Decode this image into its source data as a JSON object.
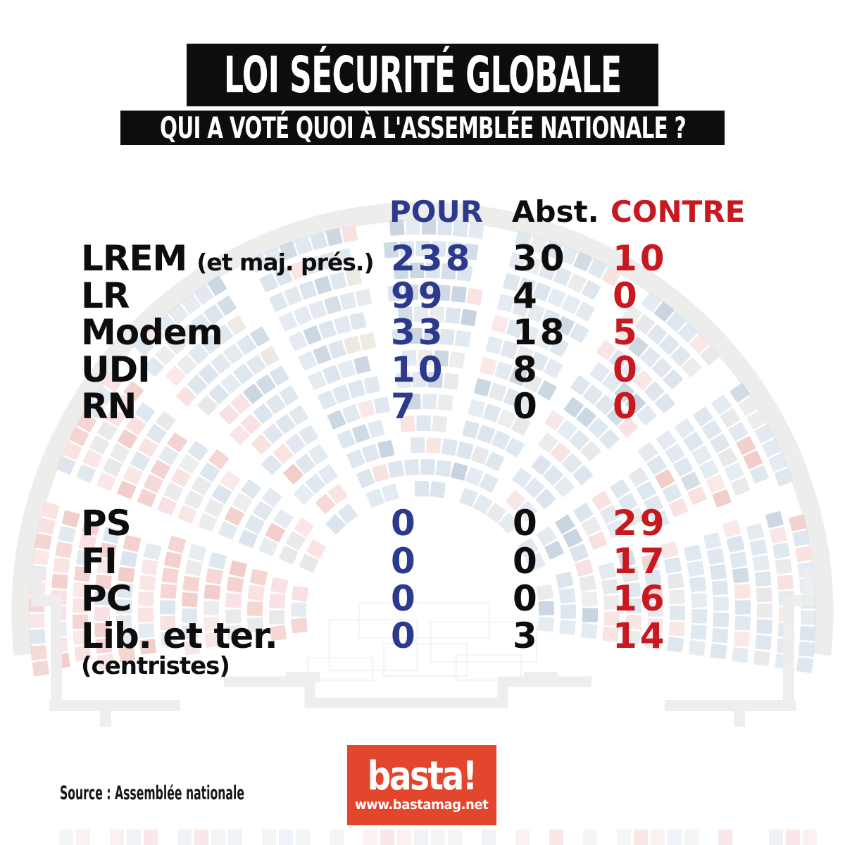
{
  "title": "LOI SÉCURITÉ GLOBALE",
  "subtitle": "QUI A VOTÉ QUOI À L'ASSEMBLÉE NATIONALE ?",
  "columns": {
    "pour": "POUR",
    "abst": "Abst.",
    "contre": "CONTRE"
  },
  "colors": {
    "pour_blue": "#2b3a8c",
    "contre_red": "#c7191f",
    "text_black": "#0d0d0d",
    "title_bg": "#0d0d0d",
    "title_fg": "#ffffff",
    "basta_bg": "#e2462c",
    "basta_fg": "#ffffff"
  },
  "table": {
    "rows": [
      {
        "party": "LREM",
        "note": "(et maj. prés.)",
        "pour": "238",
        "abst": "30",
        "contre": "10"
      },
      {
        "party": "LR",
        "pour": "99",
        "abst": "4",
        "contre": "0"
      },
      {
        "party": "Modem",
        "pour": "33",
        "abst": "18",
        "contre": "5"
      },
      {
        "party": "UDI",
        "pour": "10",
        "abst": "8",
        "contre": "0"
      },
      {
        "party": "RN",
        "pour": "7",
        "abst": "0",
        "contre": "0"
      },
      {
        "party": "PS",
        "pour": "0",
        "abst": "0",
        "contre": "29"
      },
      {
        "party": "FI",
        "pour": "0",
        "abst": "0",
        "contre": "17"
      },
      {
        "party": "PC",
        "pour": "0",
        "abst": "0",
        "contre": "16"
      },
      {
        "party": "Lib. et ter.",
        "subnote": "(centristes)",
        "pour": "0",
        "abst": "3",
        "contre": "14"
      }
    ]
  },
  "source": "Source : Assemblée nationale",
  "logo": {
    "name": "basta!",
    "url": "www.bastamag.net"
  },
  "hemicycle": {
    "description": "faded seating plan of the Assemblée nationale hemicycle used as background",
    "palette": {
      "seat_blue": "#b9cadb",
      "seat_slate": "#8ea7bf",
      "seat_pink": "#f1c2c0",
      "seat_red": "#e59a94",
      "seat_gray": "#cfd0d3",
      "seat_beige": "#d8d2c3",
      "ring_gray": "#d9dad8",
      "outline_gray": "#dcdcdc"
    }
  },
  "chart_data": {
    "type": "table",
    "title": "LOI SÉCURITÉ GLOBALE — QUI A VOTÉ QUOI À L'ASSEMBLÉE NATIONALE ?",
    "categories": [
      "LREM (et maj. prés.)",
      "LR",
      "Modem",
      "UDI",
      "RN",
      "PS",
      "FI",
      "PC",
      "Lib. et ter. (centristes)"
    ],
    "series": [
      {
        "name": "POUR",
        "color": "#2b3a8c",
        "values": [
          238,
          99,
          33,
          10,
          7,
          0,
          0,
          0,
          0
        ]
      },
      {
        "name": "Abst.",
        "color": "#0d0d0d",
        "values": [
          30,
          4,
          18,
          8,
          0,
          0,
          0,
          0,
          3
        ]
      },
      {
        "name": "CONTRE",
        "color": "#c7191f",
        "values": [
          10,
          0,
          5,
          0,
          0,
          29,
          17,
          16,
          14
        ]
      }
    ],
    "legend_position": "top",
    "source": "Assemblée nationale"
  }
}
